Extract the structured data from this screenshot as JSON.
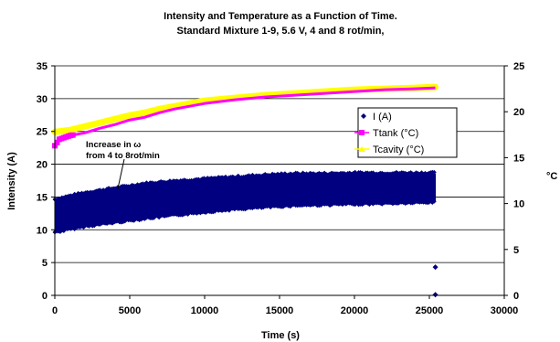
{
  "chart_data": {
    "type": "scatter",
    "title": "Intensity and Temperature as a Function of Time.",
    "subtitle": "Standard Mixture 1-9,   5.6 V,    4 and 8 rot/min,",
    "xlabel": "Time (s)",
    "ylabel": "Intensity (A)",
    "y2label": "°C",
    "xlim": [
      0,
      30000
    ],
    "ylim": [
      0,
      35
    ],
    "y2lim": [
      0,
      25
    ],
    "x_ticks": [
      0,
      5000,
      10000,
      15000,
      20000,
      25000,
      30000
    ],
    "y_ticks": [
      0,
      5,
      10,
      15,
      20,
      25,
      30,
      35
    ],
    "y2_ticks": [
      0,
      5,
      10,
      15,
      20,
      25
    ],
    "grid": "horizontal",
    "legend_position": "right, inside plot",
    "annotation": {
      "line1": "Increase in ω",
      "line2": "from 4 to 8rot/min",
      "x": 4200,
      "y": 16.2
    },
    "series": [
      {
        "name": "I (A)",
        "axis": "left",
        "marker": "diamond",
        "color": "#000080",
        "band_x": [
          0,
          2000,
          4000,
          6000,
          8000,
          10000,
          12000,
          14000,
          16000,
          18000,
          20000,
          22000,
          24000,
          25400
        ],
        "band_min": [
          9.8,
          10.7,
          11.3,
          11.9,
          12.4,
          12.9,
          13.3,
          13.6,
          13.9,
          14.0,
          14.1,
          14.2,
          14.3,
          14.4
        ],
        "band_max": [
          14.5,
          15.5,
          16.2,
          16.9,
          17.3,
          17.6,
          17.9,
          18.2,
          18.4,
          18.4,
          18.5,
          18.5,
          18.5,
          18.5
        ],
        "outliers": [
          [
            25400,
            4.3
          ],
          [
            25400,
            0.1
          ]
        ]
      },
      {
        "name": "Ttank (°C)",
        "axis": "right",
        "marker": "square",
        "color": "#ff00ff",
        "x": [
          0,
          300,
          1000,
          2000,
          3000,
          4000,
          5000,
          6000,
          7000,
          8000,
          9000,
          10000,
          12000,
          14000,
          16000,
          18000,
          20000,
          22000,
          24000,
          25400
        ],
        "y": [
          16.3,
          17.0,
          17.4,
          17.7,
          18.2,
          18.6,
          19.1,
          19.4,
          19.9,
          20.3,
          20.6,
          20.9,
          21.3,
          21.6,
          21.8,
          22.0,
          22.2,
          22.4,
          22.5,
          22.6
        ]
      },
      {
        "name": "Tcavity (°C)",
        "axis": "right",
        "marker": "triangle",
        "color": "#ffff00",
        "x": [
          0,
          1000,
          2000,
          3000,
          4000,
          5000,
          6000,
          7000,
          8000,
          9000,
          10000,
          12000,
          14000,
          16000,
          18000,
          20000,
          22000,
          24000,
          25400
        ],
        "y": [
          17.8,
          18.0,
          18.4,
          18.8,
          19.2,
          19.6,
          19.9,
          20.3,
          20.6,
          20.9,
          21.2,
          21.5,
          21.8,
          22.0,
          22.2,
          22.4,
          22.5,
          22.6,
          22.7
        ]
      }
    ]
  }
}
